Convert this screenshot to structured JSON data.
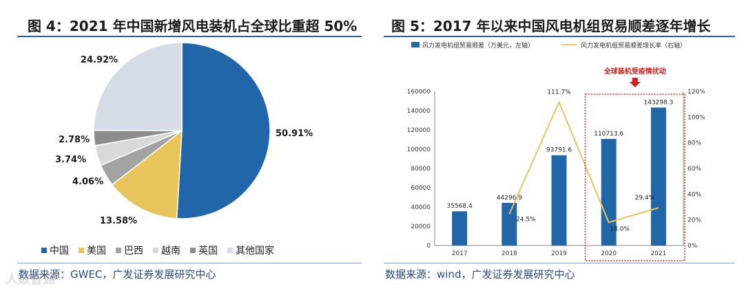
{
  "left": {
    "title": "图 4：2021 年中国新增风电装机占全球比重超 50%",
    "source": "数据来源：GWEC，广发证券发展研究中心"
  },
  "right": {
    "title": "图 5：2017 年以来中国风电机组贸易顺差逐年增长",
    "source": "数据来源：wind，广发证券发展研究中心",
    "annotation": "全球装机受疫情扰动"
  },
  "watermark": "人数智通",
  "chart_data": [
    {
      "type": "pie",
      "slices": [
        {
          "label": "中国",
          "value": 50.91,
          "display": "50.91%",
          "color": "#2166a8"
        },
        {
          "label": "美国",
          "value": 13.58,
          "display": "13.58%",
          "color": "#e8c55a"
        },
        {
          "label": "巴西",
          "value": 4.06,
          "display": "4.06%",
          "color": "#a3a3a3"
        },
        {
          "label": "越南",
          "value": 3.74,
          "display": "3.74%",
          "color": "#d9d9d9"
        },
        {
          "label": "英国",
          "value": 2.78,
          "display": "2.78%",
          "color": "#8c8c8c"
        },
        {
          "label": "其他国家",
          "value": 24.92,
          "display": "24.92%",
          "color": "#d6dce6"
        }
      ],
      "legend_position": "bottom"
    },
    {
      "type": "bar",
      "categories": [
        "2017",
        "2018",
        "2019",
        "2020",
        "2021"
      ],
      "series": [
        {
          "name": "风力发电机组贸易顺差（万美元，左轴）",
          "kind": "bar",
          "axis": "left",
          "color": "#2166a8",
          "values": [
            35568.4,
            44296.9,
            93791.6,
            110713.6,
            143298.3
          ],
          "labels": [
            "35568.4",
            "44296.9",
            "93791.6",
            "110713.6",
            "143298.3"
          ]
        },
        {
          "name": "风力发电机组贸易顺差增长率（右轴）",
          "kind": "line",
          "axis": "right",
          "color": "#e8c55a",
          "values": [
            null,
            24.5,
            111.7,
            18.0,
            29.4
          ],
          "labels": [
            null,
            "24.5%",
            "111.7%",
            "18.0%",
            "29.4%"
          ]
        }
      ],
      "y_left": {
        "range": [
          0,
          160000
        ],
        "ticks": [
          "0",
          "20000",
          "40000",
          "60000",
          "80000",
          "100000",
          "120000",
          "140000",
          "160000"
        ]
      },
      "y_right": {
        "range": [
          0,
          120
        ],
        "ticks": [
          "0%",
          "20%",
          "40%",
          "60%",
          "80%",
          "100%",
          "120%"
        ]
      },
      "legend_position": "top",
      "highlight_categories": [
        "2020",
        "2021"
      ]
    }
  ]
}
